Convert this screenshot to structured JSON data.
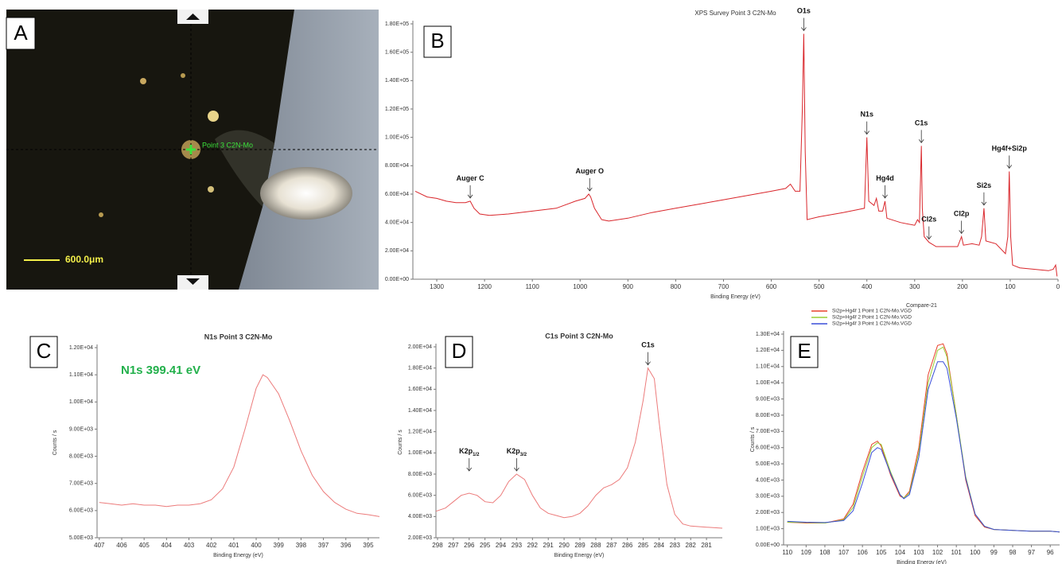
{
  "image": {
    "panel_label": "A",
    "marker_label": "Point 3 C2N-Mo",
    "scale_bar": "600.0μm"
  },
  "chart_data": [
    {
      "type": "line",
      "panel_label": "B",
      "title": "XPS Survey Point 3 C2N-Mo",
      "xlabel": "Binding Energy (eV)",
      "color": "#d9262b",
      "x": [
        1345,
        1320,
        1300,
        1280,
        1260,
        1240,
        1230,
        1222,
        1210,
        1190,
        1150,
        1100,
        1050,
        1010,
        990,
        982,
        978,
        970,
        955,
        940,
        900,
        850,
        800,
        750,
        700,
        650,
        600,
        570,
        560,
        550,
        540,
        535,
        532,
        529,
        525,
        500,
        450,
        420,
        405,
        400,
        396,
        385,
        380,
        375,
        367,
        362,
        358,
        330,
        300,
        294,
        290,
        286,
        284,
        280,
        270,
        255,
        230,
        210,
        202,
        198,
        180,
        165,
        160,
        155,
        151,
        130,
        110,
        105,
        102,
        99,
        95,
        80,
        50,
        20,
        10,
        5,
        2
      ],
      "values": [
        62000,
        58000,
        57000,
        55000,
        54000,
        54000,
        55000,
        50000,
        46000,
        45000,
        46000,
        48000,
        50000,
        55000,
        57000,
        60000,
        58000,
        50000,
        42000,
        41000,
        43000,
        47000,
        50000,
        53000,
        56000,
        59000,
        62000,
        64000,
        67000,
        62000,
        62000,
        120000,
        173000,
        90000,
        42000,
        44000,
        47000,
        49000,
        50000,
        100000,
        55000,
        52000,
        57000,
        48000,
        48000,
        55000,
        43000,
        40000,
        38000,
        42000,
        40000,
        94000,
        50000,
        30000,
        26000,
        23000,
        23000,
        23000,
        30000,
        24000,
        25000,
        24000,
        30000,
        50000,
        27000,
        25000,
        18000,
        30000,
        76000,
        30000,
        10000,
        8000,
        7000,
        6000,
        7000,
        10000,
        2000
      ],
      "xlim": [
        1350,
        0
      ],
      "ylim": [
        0,
        180000
      ],
      "xticks": [
        1300,
        1200,
        1100,
        1000,
        900,
        800,
        700,
        600,
        500,
        400,
        300,
        200,
        100,
        0
      ],
      "yticks": [
        {
          "value": 0,
          "label": "0.00E+00"
        },
        {
          "value": 20000,
          "label": "2.00E+04"
        },
        {
          "value": 40000,
          "label": "4.00E+04"
        },
        {
          "value": 60000,
          "label": "6.00E+04"
        },
        {
          "value": 80000,
          "label": "8.00E+04"
        },
        {
          "value": 100000,
          "label": "1.00E+05"
        },
        {
          "value": 120000,
          "label": "1.20E+05"
        },
        {
          "value": 140000,
          "label": "1.40E+05"
        },
        {
          "value": 160000,
          "label": "1.60E+05"
        },
        {
          "value": 180000,
          "label": "1.80E+05"
        }
      ],
      "annotations": [
        {
          "text": "Auger C",
          "x": 1230
        },
        {
          "text": "Auger O",
          "x": 980
        },
        {
          "text": "O1s",
          "x": 532
        },
        {
          "text": "N1s",
          "x": 400
        },
        {
          "text": "Hg4d",
          "x": 362
        },
        {
          "text": "C1s",
          "x": 286
        },
        {
          "text": "Cl2s",
          "x": 270
        },
        {
          "text": "Cl2p",
          "x": 202
        },
        {
          "text": "Si2s",
          "x": 155
        },
        {
          "text": "Hg4f+Si2p",
          "x": 102
        }
      ]
    },
    {
      "type": "line",
      "panel_label": "C",
      "title": "N1s Point 3 C2N-Mo",
      "xlabel": "Binding Energy (eV)",
      "ylabel": "Counts / s",
      "color": "#ec7b7b",
      "annotation": "N1s 399.41 eV",
      "annotation_color": "#22b04b",
      "x": [
        407,
        406.5,
        406,
        405.5,
        405,
        404.5,
        404,
        403.5,
        403,
        402.5,
        402,
        401.5,
        401,
        400.5,
        400,
        399.7,
        399.5,
        399,
        398.5,
        398,
        397.5,
        397,
        396.5,
        396,
        395.5,
        395,
        394.5
      ],
      "values": [
        6300,
        6250,
        6200,
        6250,
        6200,
        6200,
        6150,
        6200,
        6200,
        6250,
        6400,
        6800,
        7600,
        9000,
        10500,
        11000,
        10900,
        10300,
        9300,
        8200,
        7300,
        6700,
        6300,
        6050,
        5900,
        5850,
        5780
      ],
      "xlim": [
        407.1,
        394.5
      ],
      "ylim": [
        5000,
        12000
      ],
      "xticks": [
        407,
        406,
        405,
        404,
        403,
        402,
        401,
        400,
        399,
        398,
        397,
        396,
        395
      ],
      "yticks": [
        {
          "value": 5000,
          "label": "5.00E+03"
        },
        {
          "value": 6000,
          "label": "6.00E+03"
        },
        {
          "value": 7000,
          "label": "7.00E+03"
        },
        {
          "value": 8000,
          "label": "8.00E+03"
        },
        {
          "value": 9000,
          "label": "9.00E+03"
        },
        {
          "value": 10000,
          "label": "1.00E+04"
        },
        {
          "value": 11000,
          "label": "1.10E+04"
        },
        {
          "value": 12000,
          "label": "1.20E+04"
        }
      ]
    },
    {
      "type": "line",
      "panel_label": "D",
      "title": "C1s Point 3 C2N-Mo",
      "xlabel": "Binding Energy (eV)",
      "ylabel": "Counts / s",
      "color": "#ec7b7b",
      "x": [
        298.1,
        297.5,
        297,
        296.5,
        296,
        295.5,
        295,
        294.5,
        294,
        293.5,
        293,
        292.5,
        292,
        291.5,
        291,
        290.5,
        290,
        289.5,
        289,
        288.5,
        288,
        287.5,
        287,
        286.5,
        286,
        285.5,
        285,
        284.7,
        284.3,
        284,
        283.5,
        283,
        282.5,
        282,
        281,
        280
      ],
      "values": [
        4500,
        4800,
        5400,
        6000,
        6200,
        6000,
        5400,
        5300,
        6000,
        7300,
        8000,
        7500,
        6000,
        4800,
        4300,
        4100,
        3900,
        4000,
        4300,
        5000,
        6000,
        6700,
        7000,
        7500,
        8600,
        11000,
        15000,
        18000,
        17000,
        13000,
        7000,
        4200,
        3300,
        3100,
        3000,
        2900
      ],
      "xlim": [
        298.1,
        280
      ],
      "ylim": [
        2000,
        20000
      ],
      "xticks": [
        298,
        297,
        296,
        295,
        294,
        293,
        292,
        291,
        290,
        289,
        288,
        287,
        286,
        285,
        284,
        283,
        282,
        281
      ],
      "yticks": [
        {
          "value": 2000,
          "label": "2.00E+03"
        },
        {
          "value": 4000,
          "label": "4.00E+03"
        },
        {
          "value": 6000,
          "label": "6.00E+03"
        },
        {
          "value": 8000,
          "label": "8.00E+03"
        },
        {
          "value": 10000,
          "label": "1.00E+04"
        },
        {
          "value": 12000,
          "label": "1.20E+04"
        },
        {
          "value": 14000,
          "label": "1.40E+04"
        },
        {
          "value": 16000,
          "label": "1.60E+04"
        },
        {
          "value": 18000,
          "label": "1.80E+04"
        },
        {
          "value": 20000,
          "label": "2.00E+04"
        }
      ],
      "annotations": [
        {
          "text": "K2p",
          "sub": "1/2",
          "x": 296
        },
        {
          "text": "K2p",
          "sub": "3/2",
          "x": 293
        },
        {
          "text": "C1s",
          "x": 284.7
        }
      ]
    },
    {
      "type": "line",
      "panel_label": "E",
      "title": "Compare-21",
      "xlabel": "Binding Energy (eV)",
      "ylabel": "Counts / s",
      "x": [
        110,
        109,
        108,
        107,
        106.5,
        106,
        105.5,
        105.2,
        105,
        104.5,
        104,
        103.8,
        103.5,
        103,
        102.5,
        102,
        101.7,
        101.5,
        101,
        100.5,
        100,
        99.5,
        99,
        98,
        97,
        96,
        95.5
      ],
      "series": [
        {
          "name": "Si2p+Hg4f 1 Point 1 C2N-Mo.VGD",
          "color": "#e8402a",
          "values": [
            1400,
            1350,
            1350,
            1600,
            2500,
            4500,
            6200,
            6400,
            6100,
            4300,
            3000,
            2900,
            3300,
            6000,
            10500,
            12300,
            12400,
            11800,
            8000,
            4000,
            1800,
            1100,
            950,
            900,
            850,
            850,
            800
          ]
        },
        {
          "name": "Si2p+Hg4f 2 Point 1 C2N-Mo.VGD",
          "color": "#9acd32",
          "values": [
            1400,
            1380,
            1350,
            1550,
            2300,
            4200,
            6000,
            6300,
            6200,
            4500,
            3100,
            2900,
            3200,
            5700,
            10000,
            12000,
            12200,
            11600,
            8000,
            4200,
            1900,
            1150,
            950,
            900,
            850,
            850,
            800
          ]
        },
        {
          "name": "Si2p+Hg4f 3 Point 1 C2N-Mo.VGD",
          "color": "#3a4fd8",
          "values": [
            1450,
            1400,
            1380,
            1500,
            2100,
            3800,
            5700,
            6000,
            5900,
            4400,
            3100,
            2850,
            3100,
            5400,
            9600,
            11300,
            11300,
            10900,
            7800,
            4100,
            1900,
            1150,
            950,
            900,
            850,
            850,
            800
          ]
        }
      ],
      "xlim": [
        110.2,
        95.5
      ],
      "ylim": [
        0,
        13000
      ],
      "xticks": [
        110,
        109,
        108,
        107,
        106,
        105,
        104,
        103,
        102,
        101,
        100,
        99,
        98,
        97,
        96
      ],
      "yticks": [
        {
          "value": 0,
          "label": "0.00E+00"
        },
        {
          "value": 1000,
          "label": "1.00E+03"
        },
        {
          "value": 2000,
          "label": "2.00E+03"
        },
        {
          "value": 3000,
          "label": "3.00E+03"
        },
        {
          "value": 4000,
          "label": "4.00E+03"
        },
        {
          "value": 5000,
          "label": "5.00E+03"
        },
        {
          "value": 6000,
          "label": "6.00E+03"
        },
        {
          "value": 7000,
          "label": "7.00E+03"
        },
        {
          "value": 8000,
          "label": "8.00E+03"
        },
        {
          "value": 9000,
          "label": "9.00E+03"
        },
        {
          "value": 10000,
          "label": "1.00E+04"
        },
        {
          "value": 11000,
          "label": "1.10E+04"
        },
        {
          "value": 12000,
          "label": "1.20E+04"
        },
        {
          "value": 13000,
          "label": "1.30E+04"
        }
      ]
    }
  ]
}
